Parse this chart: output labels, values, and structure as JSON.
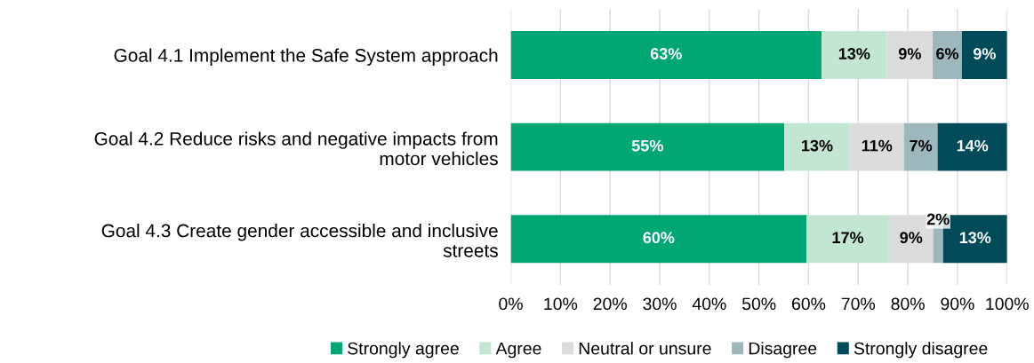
{
  "chart_data": {
    "type": "bar",
    "orientation": "horizontal",
    "stacked": true,
    "categories": [
      "Goal 4.1 Implement the Safe System approach",
      "Goal 4.2 Reduce risks and negative impacts from\nmotor vehicles",
      "Goal 4.3 Create gender accessible and inclusive\nstreets"
    ],
    "series": [
      {
        "name": "Strongly agree",
        "color": "#00a774",
        "values": [
          62.6,
          55.1,
          59.6
        ],
        "value_labels": [
          "63%",
          "55%",
          "60%"
        ]
      },
      {
        "name": "Agree",
        "color": "#c3e6d3",
        "values": [
          13.2,
          13.2,
          16.6
        ],
        "value_labels": [
          "13%",
          "13%",
          "17%"
        ]
      },
      {
        "name": "Neutral or unsure",
        "color": "#dcdcdc",
        "values": [
          9.2,
          10.9,
          8.9
        ],
        "value_labels": [
          "9%",
          "11%",
          "9%"
        ]
      },
      {
        "name": "Disagree",
        "color": "#9db8bd",
        "values": [
          5.9,
          6.8,
          2.0
        ],
        "value_labels": [
          "6%",
          "7%",
          "2%"
        ]
      },
      {
        "name": "Strongly disagree",
        "color": "#004a59",
        "values": [
          9.1,
          14.0,
          12.9
        ],
        "value_labels": [
          "9%",
          "14%",
          "13%"
        ]
      }
    ],
    "xlim": [
      0,
      100
    ],
    "xticks": [
      {
        "value": 0,
        "label": "0%"
      },
      {
        "value": 10,
        "label": "10%"
      },
      {
        "value": 20,
        "label": "20%"
      },
      {
        "value": 30,
        "label": "30%"
      },
      {
        "value": 40,
        "label": "40%"
      },
      {
        "value": 50,
        "label": "50%"
      },
      {
        "value": 60,
        "label": "60%"
      },
      {
        "value": 70,
        "label": "70%"
      },
      {
        "value": 80,
        "label": "80%"
      },
      {
        "value": 90,
        "label": "90%"
      },
      {
        "value": 100,
        "label": "100%"
      }
    ],
    "grid": "x",
    "legend": "bottom"
  }
}
